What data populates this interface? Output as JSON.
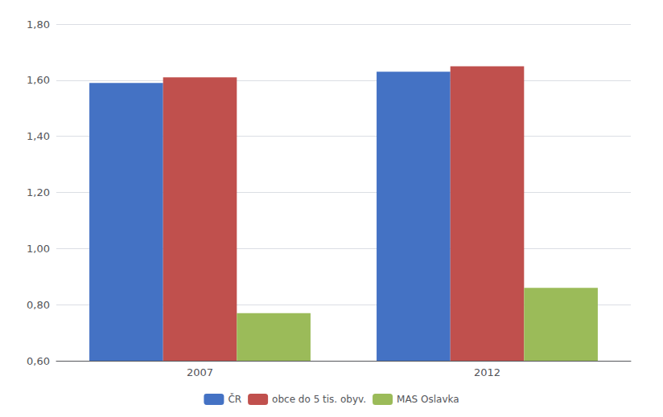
{
  "chart_data": {
    "type": "bar",
    "categories": [
      "2007",
      "2012"
    ],
    "series": [
      {
        "name": "ČR",
        "color": "#4472C4",
        "values": [
          1.59,
          1.63
        ]
      },
      {
        "name": "obce do 5 tis. obyv.",
        "color": "#C0504D",
        "values": [
          1.61,
          1.65
        ]
      },
      {
        "name": "MAS Oslavka",
        "color": "#9BBB59",
        "values": [
          0.77,
          0.86
        ]
      }
    ],
    "ylim": [
      0.6,
      1.8
    ],
    "yticks": [
      {
        "value": 0.6,
        "label": "0,60"
      },
      {
        "value": 0.8,
        "label": "0,80"
      },
      {
        "value": 1.0,
        "label": "1,00"
      },
      {
        "value": 1.2,
        "label": "1,20"
      },
      {
        "value": 1.4,
        "label": "1,40"
      },
      {
        "value": 1.6,
        "label": "1,60"
      },
      {
        "value": 1.8,
        "label": "1,80"
      }
    ],
    "grid": true,
    "legend": "bottom"
  }
}
